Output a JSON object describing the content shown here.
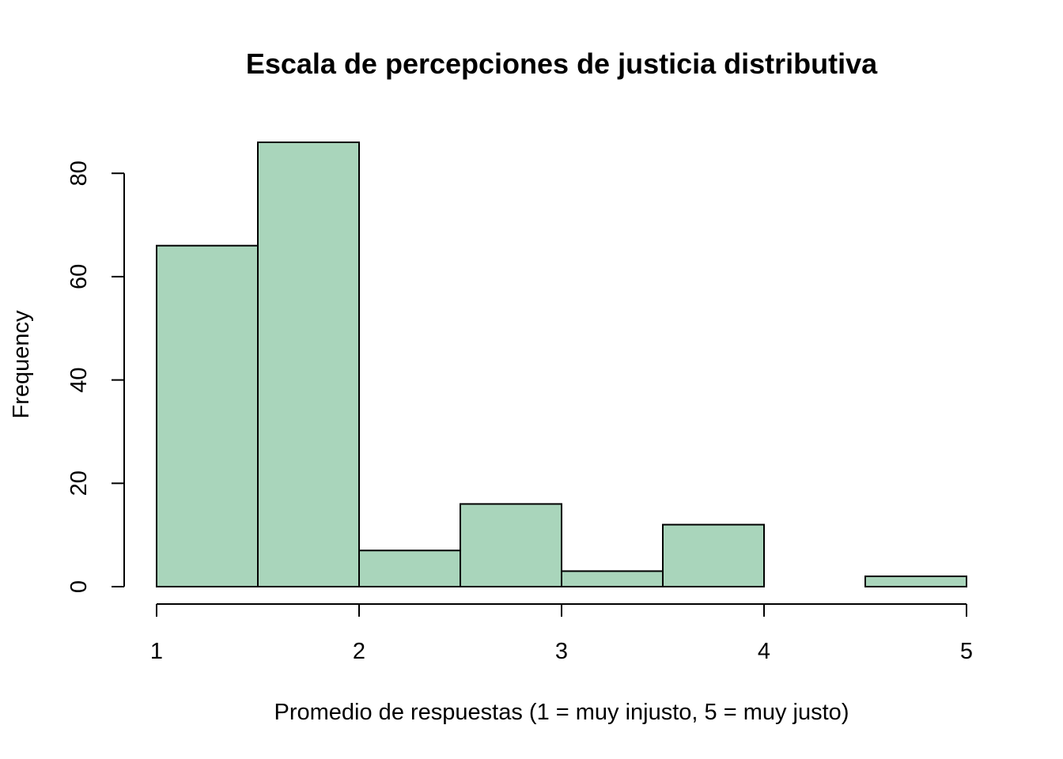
{
  "chart_data": {
    "type": "bar",
    "title": "Escala de percepciones de justicia distributiva",
    "xlabel": "Promedio de respuestas (1 = muy injusto, 5 = muy justo)",
    "ylabel": "Frequency",
    "bins": [
      {
        "start": 1.0,
        "end": 1.5,
        "count": 66
      },
      {
        "start": 1.5,
        "end": 2.0,
        "count": 86
      },
      {
        "start": 2.0,
        "end": 2.5,
        "count": 7
      },
      {
        "start": 2.5,
        "end": 3.0,
        "count": 16
      },
      {
        "start": 3.0,
        "end": 3.5,
        "count": 3
      },
      {
        "start": 3.5,
        "end": 4.0,
        "count": 12
      },
      {
        "start": 4.0,
        "end": 4.5,
        "count": 0
      },
      {
        "start": 4.5,
        "end": 5.0,
        "count": 2
      }
    ],
    "xlim": [
      1,
      5
    ],
    "ylim": [
      0,
      86
    ],
    "x_ticks": [
      1,
      2,
      3,
      4,
      5
    ],
    "y_ticks": [
      0,
      20,
      40,
      60,
      80
    ],
    "bar_color": "#a9d5bb",
    "grid": false
  }
}
